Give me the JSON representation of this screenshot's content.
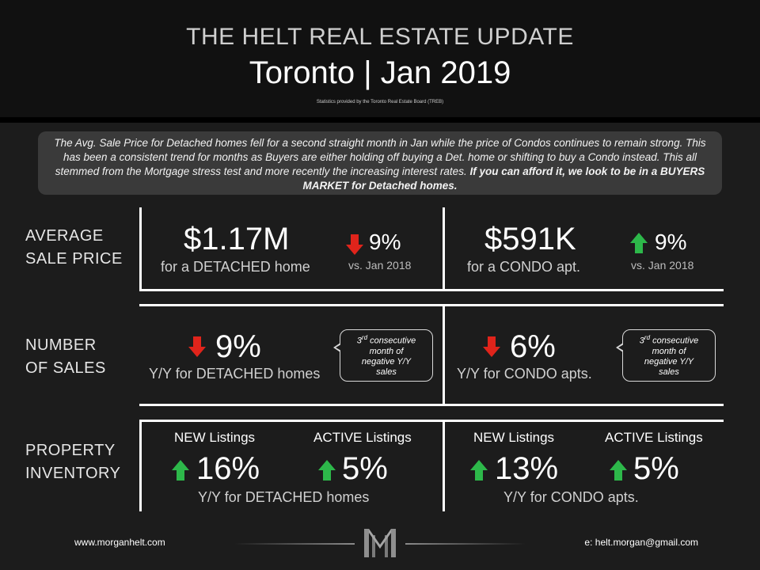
{
  "header": {
    "title_top": "THE HELT REAL ESTATE UPDATE",
    "title_main": "Toronto | Jan 2019",
    "source": "Statistics provided by the Toronto Real Estate Board (TREB)"
  },
  "summary": {
    "text": "The Avg. Sale Price for Detached homes fell for a second straight month in Jan while the price of Condos continues to remain strong. This has been a consistent trend for months as Buyers are either holding off buying a Det. home or shifting to buy a Condo instead. This all stemmed from the Mortgage stress test and more recently the increasing interest rates.",
    "bold_text": "If you can afford it, we look to be in a BUYERS MARKET for Detached homes."
  },
  "rows": {
    "avg_price": {
      "label_line1": "AVERAGE",
      "label_line2": "SALE PRICE",
      "detached": {
        "value": "$1.17M",
        "caption": "for a DETACHED home",
        "change": "9%",
        "direction": "down",
        "compare": "vs. Jan 2018"
      },
      "condo": {
        "value": "$591K",
        "caption": "for a CONDO apt.",
        "change": "9%",
        "direction": "up",
        "compare": "vs. Jan 2018"
      }
    },
    "num_sales": {
      "label_line1": "NUMBER",
      "label_line2": "OF SALES",
      "detached": {
        "change": "9%",
        "direction": "down",
        "caption": "Y/Y for DETACHED homes",
        "note_ordinal": "3",
        "note_sup": "rd",
        "note_text1": "consecutive",
        "note_text2": "month of",
        "note_text3": "negative Y/Y",
        "note_text4": "sales"
      },
      "condo": {
        "change": "6%",
        "direction": "down",
        "caption": "Y/Y for CONDO apts.",
        "note_ordinal": "3",
        "note_sup": "rd",
        "note_text1": "consecutive",
        "note_text2": "month of",
        "note_text3": "negative Y/Y",
        "note_text4": "sales"
      }
    },
    "inventory": {
      "label_line1": "PROPERTY",
      "label_line2": "INVENTORY",
      "detached": {
        "new_label": "NEW Listings",
        "new_change": "16%",
        "active_label": "ACTIVE Listings",
        "active_change": "5%",
        "caption": "Y/Y for DETACHED homes"
      },
      "condo": {
        "new_label": "NEW Listings",
        "new_change": "13%",
        "active_label": "ACTIVE Listings",
        "active_change": "5%",
        "caption": "Y/Y for CONDO apts."
      }
    }
  },
  "footer": {
    "website": "www.morganhelt.com",
    "email": "e: helt.morgan@gmail.com"
  },
  "colors": {
    "up_arrow": "#2db84a",
    "down_arrow": "#e0241b",
    "background": "#1c1c1c",
    "panel": "#3a3a3a"
  },
  "icons": {
    "up": "arrow-up-icon",
    "down": "arrow-down-icon",
    "logo": "monogram-m-logo"
  }
}
